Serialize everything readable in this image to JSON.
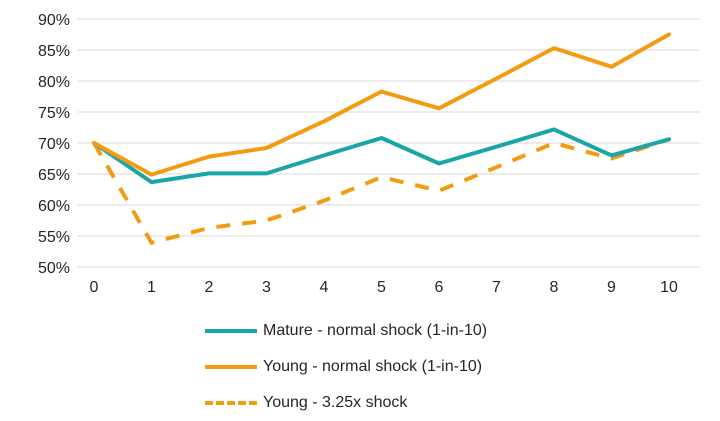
{
  "chart_data": {
    "type": "line",
    "title": "",
    "xlabel": "",
    "ylabel": "",
    "x": [
      0,
      1,
      2,
      3,
      4,
      5,
      6,
      7,
      8,
      9,
      10
    ],
    "ylim": [
      0.5,
      0.9
    ],
    "yticks": [
      0.5,
      0.55,
      0.6,
      0.65,
      0.7,
      0.75,
      0.8,
      0.85,
      0.9
    ],
    "ytick_labels": [
      "50%",
      "55%",
      "60%",
      "65%",
      "70%",
      "75%",
      "80%",
      "85%",
      "90%"
    ],
    "xtick_labels": [
      "0",
      "1",
      "2",
      "3",
      "4",
      "5",
      "6",
      "7",
      "8",
      "9",
      "10"
    ],
    "grid": "horizontal",
    "legend_position": "bottom",
    "series": [
      {
        "name": "Mature - normal shock (1-in-10)",
        "color": "#1aa6a6",
        "style": "solid",
        "values": [
          0.7,
          0.637,
          0.651,
          0.651,
          0.68,
          0.708,
          0.667,
          0.694,
          0.722,
          0.68,
          0.706
        ]
      },
      {
        "name": "Young - normal shock (1-in-10)",
        "color": "#f39c12",
        "style": "solid",
        "values": [
          0.7,
          0.649,
          0.678,
          0.692,
          0.735,
          0.783,
          0.756,
          0.804,
          0.853,
          0.823,
          0.875
        ]
      },
      {
        "name": "Young - 3.25x shock",
        "color": "#f39c12",
        "style": "dashed",
        "values": [
          0.7,
          0.539,
          0.563,
          0.575,
          0.607,
          0.645,
          0.623,
          0.661,
          0.7,
          0.675,
          0.706
        ]
      }
    ]
  }
}
